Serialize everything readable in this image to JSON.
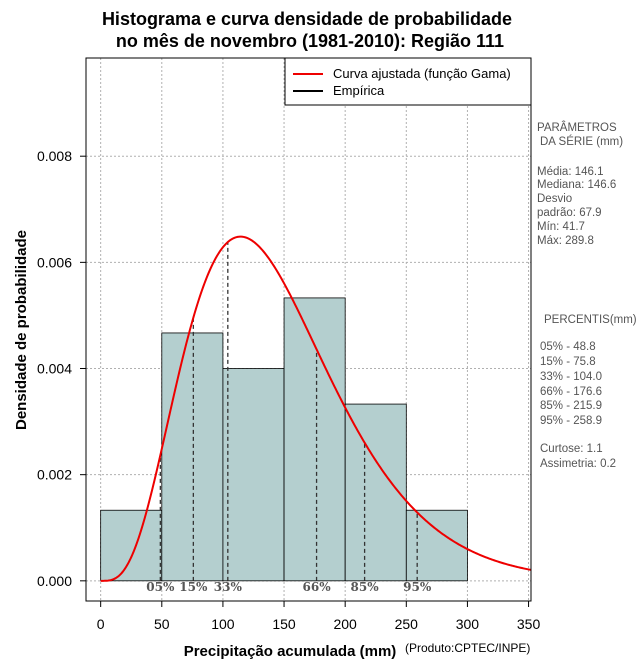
{
  "chart_data": {
    "type": "histogram",
    "title_line1": "Histograma e curva densidade de probabilidade",
    "title_line2": "no mês de novembro (1981-2010): Região 111",
    "xlabel": "Precipitação acumulada (mm)",
    "ylabel": "Densidade de probabilidade",
    "source": "(Produto:CPTEC/INPE)",
    "xlim": [
      -12,
      352
    ],
    "ylim": [
      -0.00038,
      0.00985
    ],
    "x_ticks": [
      0,
      50,
      100,
      150,
      200,
      250,
      300,
      350
    ],
    "x_tick_labels": [
      "0",
      "50",
      "100",
      "150",
      "200",
      "250",
      "300",
      "350"
    ],
    "y_ticks": [
      0,
      0.002,
      0.004,
      0.006,
      0.008
    ],
    "y_tick_labels": [
      "0.000",
      "0.002",
      "0.004",
      "0.006",
      "0.008"
    ],
    "bins": [
      {
        "from": 0,
        "to": 50,
        "density": 0.00133
      },
      {
        "from": 50,
        "to": 100,
        "density": 0.00467
      },
      {
        "from": 100,
        "to": 150,
        "density": 0.004
      },
      {
        "from": 150,
        "to": 200,
        "density": 0.00533
      },
      {
        "from": 200,
        "to": 250,
        "density": 0.00333
      },
      {
        "from": 250,
        "to": 300,
        "density": 0.00133
      }
    ],
    "gamma_fit": {
      "shape": 4.62,
      "scale": 31.6,
      "color": "#ee0000"
    },
    "percentiles": [
      {
        "label": "05%",
        "value": 48.8
      },
      {
        "label": "15%",
        "value": 75.8
      },
      {
        "label": "33%",
        "value": 104.0
      },
      {
        "label": "66%",
        "value": 176.6
      },
      {
        "label": "85%",
        "value": 215.9
      },
      {
        "label": "95%",
        "value": 258.9
      }
    ],
    "legend": [
      {
        "label": "Curva ajustada (função Gama)",
        "color": "#ee0000"
      },
      {
        "label": "Empírica",
        "color": "#000000"
      }
    ],
    "bar_color": "#b4cfcf",
    "stats": {
      "params_header_1": "PARÂMETROS",
      "params_header_2": "DA SÉRIE (mm)",
      "mean": "Média:  146.1",
      "median": "Mediana:  146.6",
      "sd_1": "Desvio",
      "sd_2": "padrão:  67.9",
      "min": "Mín:  41.7",
      "max": "Máx:  289.8",
      "percentiles_header": "PERCENTIS(mm)",
      "p05": "05% -  48.8",
      "p15": "15% -  75.8",
      "p33": "33% -  104.0",
      "p66": "66% -  176.6",
      "p85": "85% -  215.9",
      "p95": "95% -  258.9",
      "kurtosis": "Curtose:  1.1",
      "skewness": "Assimetria:  0.2"
    }
  }
}
